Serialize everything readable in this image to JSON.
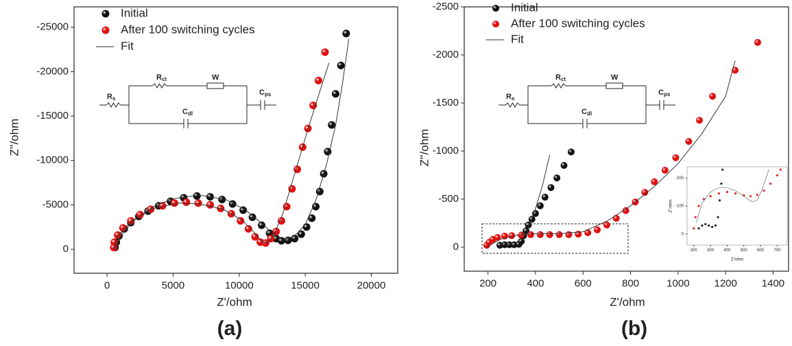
{
  "chart_data": [
    {
      "type": "scatter",
      "xlabel": "Z'/ohm",
      "ylabel": "Z''/ohm",
      "caption": "(a)",
      "xlim": [
        -2500,
        22000
      ],
      "ylim": [
        2700,
        -27300
      ],
      "xticks": [
        0,
        5000,
        10000,
        15000,
        20000
      ],
      "yticks": [
        -25000,
        -20000,
        -15000,
        -10000,
        -5000,
        0
      ],
      "circuit": [
        {
          "text": "R",
          "sub": "s"
        },
        {
          "text": "R",
          "sub": "ct"
        },
        {
          "text": "W"
        },
        {
          "text": "C",
          "sub": "dl"
        },
        {
          "text": "C",
          "sub": "ps"
        }
      ],
      "series": [
        {
          "name": "Initial",
          "mode": "markers",
          "color": "#111111",
          "x": [
            600,
            700,
            900,
            1300,
            1800,
            2400,
            3100,
            3900,
            4800,
            5800,
            6800,
            7800,
            8700,
            9500,
            10300,
            11000,
            11700,
            12300,
            12800,
            13200,
            13700,
            14200,
            14700,
            15100,
            15500,
            15800,
            16100,
            16400,
            16700,
            17000,
            17300,
            17700,
            18100
          ],
          "values": [
            -200,
            -800,
            -1500,
            -2300,
            -3000,
            -3700,
            -4300,
            -4900,
            -5400,
            -5800,
            -6000,
            -5900,
            -5600,
            -5100,
            -4400,
            -3600,
            -2700,
            -1800,
            -1200,
            -950,
            -1000,
            -1200,
            -1700,
            -2500,
            -3500,
            -4800,
            -6500,
            -8500,
            -11000,
            -14000,
            -17500,
            -20700,
            -24300
          ]
        },
        {
          "name": "After 100 switching cycles",
          "mode": "markers",
          "color": "#e01010",
          "x": [
            500,
            550,
            800,
            1200,
            1800,
            2500,
            3300,
            4200,
            5100,
            6000,
            6900,
            7800,
            8600,
            9400,
            10100,
            10700,
            11200,
            11600,
            12000,
            12400,
            12800,
            13200,
            13600,
            14000,
            14400,
            14800,
            15200,
            15600,
            16000,
            16500
          ],
          "values": [
            -200,
            -800,
            -1600,
            -2400,
            -3200,
            -3900,
            -4500,
            -4900,
            -5200,
            -5300,
            -5200,
            -5000,
            -4600,
            -4000,
            -3200,
            -2300,
            -1400,
            -800,
            -700,
            -1200,
            -2000,
            -3200,
            -4800,
            -6800,
            -9000,
            -11500,
            -13600,
            -16200,
            -19000,
            -22200
          ]
        },
        {
          "name": "Fit",
          "mode": "line",
          "color": "#333333",
          "x": [
            600,
            1000,
            2000,
            3500,
            5000,
            7000,
            9000,
            10500,
            11800,
            12800,
            13400,
            14200,
            15000,
            15800,
            16600,
            17300,
            17800,
            18300,
            null,
            500,
            800,
            1800,
            3500,
            5500,
            7000,
            8800,
            10200,
            11200,
            11700,
            12100,
            12600,
            13300,
            14200,
            15200,
            16000,
            16800
          ],
          "values": [
            0,
            -1500,
            -3200,
            -4800,
            -5700,
            -6100,
            -5600,
            -4400,
            -2800,
            -1400,
            -1000,
            -1500,
            -2800,
            -5500,
            -9500,
            -14000,
            -18500,
            -23700,
            null,
            0,
            -1500,
            -3100,
            -4600,
            -5200,
            -5100,
            -4500,
            -3300,
            -1800,
            -900,
            -700,
            -1500,
            -4000,
            -8500,
            -13500,
            -17300,
            -21000
          ]
        }
      ]
    },
    {
      "type": "scatter",
      "xlabel": "Z'/ohm",
      "ylabel": "Z''/ohm",
      "caption": "(b)",
      "xlim": [
        100,
        1465
      ],
      "ylim": [
        250,
        -2500
      ],
      "xticks": [
        200,
        400,
        600,
        800,
        1000,
        1200,
        1400
      ],
      "yticks": [
        -2500,
        -2000,
        -1500,
        -1000,
        -500,
        0
      ],
      "circuit": [
        {
          "text": "R",
          "sub": "s"
        },
        {
          "text": "R",
          "sub": "ct"
        },
        {
          "text": "W"
        },
        {
          "text": "C",
          "sub": "dl"
        },
        {
          "text": "C",
          "sub": "ps"
        }
      ],
      "series": [
        {
          "name": "Initial",
          "mode": "markers",
          "color": "#111111",
          "x": [
            250,
            270,
            290,
            310,
            330,
            340,
            350,
            360,
            370,
            385,
            400,
            420,
            440,
            465,
            490,
            520,
            550
          ],
          "values": [
            -20,
            -25,
            -25,
            -25,
            -30,
            -60,
            -120,
            -170,
            -230,
            -290,
            -350,
            -430,
            -520,
            -620,
            -720,
            -850,
            -990
          ]
        },
        {
          "name": "After 100 switching cycles",
          "mode": "markers",
          "color": "#e01010",
          "x": [
            195,
            205,
            220,
            240,
            270,
            300,
            340,
            380,
            420,
            460,
            500,
            540,
            580,
            620,
            660,
            700,
            740,
            780,
            820,
            860,
            900,
            945,
            990,
            1045,
            1090,
            1145,
            1240,
            1335
          ],
          "values": [
            -20,
            -50,
            -80,
            -100,
            -115,
            -120,
            -125,
            -130,
            -130,
            -130,
            -130,
            -130,
            -135,
            -150,
            -180,
            -230,
            -300,
            -380,
            -470,
            -570,
            -680,
            -800,
            -930,
            -1100,
            -1320,
            -1570,
            -1840,
            -2130
          ]
        },
        {
          "name": "Fit",
          "mode": "line",
          "color": "#333333",
          "x": [
            250,
            300,
            340,
            370,
            400,
            430,
            460,
            null,
            195,
            250,
            350,
            500,
            600,
            700,
            800,
            900,
            1000,
            1100,
            1200,
            1240
          ],
          "values": [
            -30,
            -40,
            -60,
            -200,
            -400,
            -650,
            -960,
            null,
            0,
            -80,
            -140,
            -140,
            -160,
            -270,
            -430,
            -630,
            -870,
            -1180,
            -1570,
            -1940
          ]
        }
      ]
    },
    {
      "type": "scatter",
      "xlabel": "Z'/ohm",
      "ylabel": "Z''/ohm",
      "xlim": [
        160,
        760
      ],
      "ylim": [
        40,
        -240
      ],
      "xticks": [
        200,
        300,
        400,
        500,
        600,
        700
      ],
      "yticks": [
        -200,
        -100,
        0
      ],
      "series": [
        {
          "mode": "markers",
          "color": "#111111",
          "x": [
            230,
            250,
            270,
            290,
            310,
            330,
            345,
            355,
            365,
            372
          ],
          "values": [
            -20,
            -30,
            -35,
            -30,
            -25,
            -30,
            -60,
            -120,
            -180,
            -230
          ]
        },
        {
          "mode": "markers",
          "color": "#e01010",
          "x": [
            200,
            210,
            230,
            260,
            300,
            350,
            400,
            450,
            500,
            540,
            580,
            620,
            660,
            700,
            720
          ],
          "values": [
            -20,
            -60,
            -100,
            -125,
            -135,
            -145,
            -150,
            -145,
            -138,
            -135,
            -140,
            -155,
            -180,
            -210,
            -230
          ]
        },
        {
          "mode": "line",
          "color": "#555555",
          "x": [
            215,
            250,
            300,
            350,
            400,
            450,
            500,
            550,
            580,
            610,
            650
          ],
          "values": [
            -40,
            -110,
            -150,
            -165,
            -165,
            -155,
            -135,
            -115,
            -120,
            -160,
            -230
          ]
        }
      ]
    }
  ]
}
